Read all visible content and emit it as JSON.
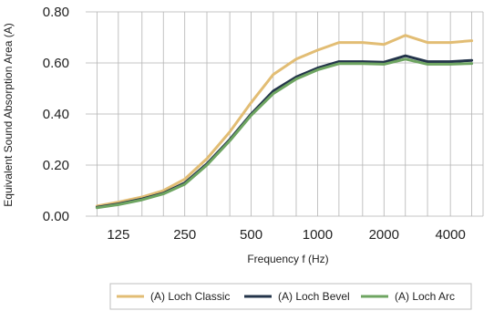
{
  "chart_data": {
    "type": "line",
    "title": "",
    "xlabel": "Frequency f (Hz)",
    "ylabel": "Equivalent Sound Absorption Area (A)",
    "ylim": [
      0,
      0.8
    ],
    "x_scale": "log",
    "x_tick_labels": [
      "125",
      "250",
      "500",
      "1000",
      "2000",
      "4000"
    ],
    "y_tick_labels": [
      "0.00",
      "0.20",
      "0.40",
      "0.60",
      "0.80"
    ],
    "x": [
      100,
      125,
      160,
      200,
      250,
      315,
      400,
      500,
      630,
      800,
      1000,
      1250,
      1600,
      2000,
      2500,
      3150,
      4000,
      5000
    ],
    "series": [
      {
        "name": "(A) Loch Classic",
        "color": "#e2bd74",
        "values": [
          0.04,
          0.055,
          0.075,
          0.1,
          0.145,
          0.225,
          0.33,
          0.445,
          0.555,
          0.615,
          0.65,
          0.68,
          0.68,
          0.672,
          0.708,
          0.68,
          0.68,
          0.687
        ]
      },
      {
        "name": "(A) Loch Bevel",
        "color": "#23344a",
        "values": [
          0.035,
          0.048,
          0.067,
          0.09,
          0.13,
          0.205,
          0.3,
          0.4,
          0.49,
          0.545,
          0.58,
          0.605,
          0.605,
          0.603,
          0.628,
          0.605,
          0.605,
          0.61
        ]
      },
      {
        "name": "(A) Loch Arc",
        "color": "#6ea561",
        "values": [
          0.033,
          0.045,
          0.064,
          0.087,
          0.125,
          0.2,
          0.295,
          0.395,
          0.48,
          0.537,
          0.573,
          0.597,
          0.597,
          0.595,
          0.615,
          0.595,
          0.595,
          0.598
        ]
      }
    ],
    "grid": true,
    "legend_position": "bottom"
  }
}
